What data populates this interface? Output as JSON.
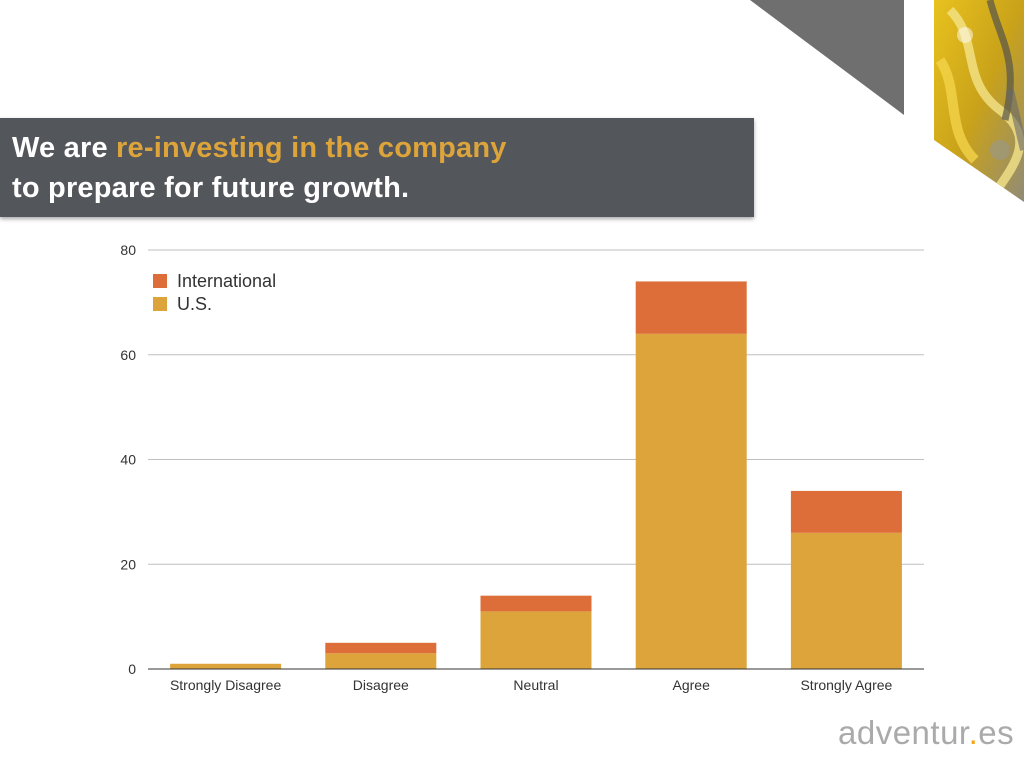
{
  "slide": {
    "title_line1_prefix": "We are ",
    "title_line1_highlight": "re-investing in the company",
    "title_line2": "to prepare for future growth.",
    "logo_part1": "adventur",
    "logo_dot": ".",
    "logo_part2": "es"
  },
  "colors": {
    "title_bar": "#53565a",
    "highlight": "#dca43a",
    "us": "#dca43a",
    "international": "#dd6e39",
    "triangle": "#6f6f6f"
  },
  "chart_data": {
    "type": "bar",
    "stacked": true,
    "categories": [
      "Strongly Disagree",
      "Disagree",
      "Neutral",
      "Agree",
      "Strongly Agree"
    ],
    "series": [
      {
        "name": "U.S.",
        "values": [
          1,
          3,
          11,
          64,
          26
        ],
        "color": "#dca43a"
      },
      {
        "name": "International",
        "values": [
          0,
          2,
          3,
          10,
          8
        ],
        "color": "#dd6e39"
      }
    ],
    "legend": [
      "International",
      "U.S."
    ],
    "legend_position": "top-left",
    "ylim": [
      0,
      80
    ],
    "yticks": [
      0,
      20,
      40,
      60,
      80
    ],
    "grid": true,
    "title": "",
    "xlabel": "",
    "ylabel": ""
  }
}
